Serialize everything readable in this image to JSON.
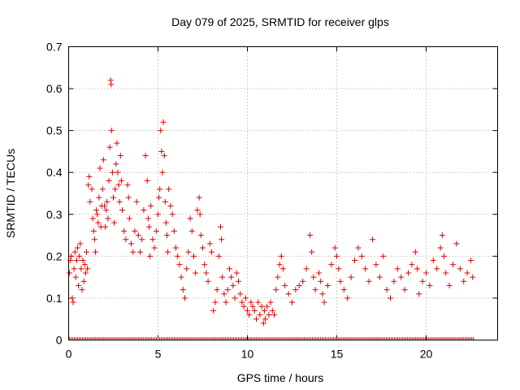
{
  "chart_data": {
    "type": "scatter",
    "title": "Day 079 of 2025, SRMTID for receiver glps",
    "xlabel": "GPS time / hours",
    "ylabel": "SRMTID / TECUs",
    "xlim": [
      0,
      24
    ],
    "ylim": [
      0,
      0.7
    ],
    "x_ticks": [
      "0",
      "5",
      "10",
      "15",
      "20"
    ],
    "y_ticks": [
      "0",
      "0.1",
      "0.2",
      "0.3",
      "0.4",
      "0.5",
      "0.6",
      "0.7"
    ],
    "grid": true,
    "marker": "plus",
    "color": "#e00000",
    "series": [
      {
        "name": "SRMTID",
        "points": [
          [
            0.05,
            0.16
          ],
          [
            0.1,
            0.19
          ],
          [
            0.15,
            0.2
          ],
          [
            0.2,
            0.1
          ],
          [
            0.25,
            0.09
          ],
          [
            0.3,
            0.17
          ],
          [
            0.35,
            0.21
          ],
          [
            0.4,
            0.15
          ],
          [
            0.45,
            0.19
          ],
          [
            0.5,
            0.22
          ],
          [
            0.55,
            0.13
          ],
          [
            0.6,
            0.2
          ],
          [
            0.65,
            0.23
          ],
          [
            0.7,
            0.17
          ],
          [
            0.75,
            0.12
          ],
          [
            0.8,
            0.19
          ],
          [
            0.85,
            0.14
          ],
          [
            0.9,
            0.18
          ],
          [
            0.95,
            0.16
          ],
          [
            1.0,
            0.21
          ],
          [
            1.05,
            0.17
          ],
          [
            1.1,
            0.37
          ],
          [
            1.15,
            0.39
          ],
          [
            1.2,
            0.33
          ],
          [
            1.3,
            0.36
          ],
          [
            1.35,
            0.29
          ],
          [
            1.4,
            0.26
          ],
          [
            1.45,
            0.24
          ],
          [
            1.5,
            0.21
          ],
          [
            1.55,
            0.31
          ],
          [
            1.6,
            0.3
          ],
          [
            1.65,
            0.28
          ],
          [
            1.7,
            0.34
          ],
          [
            1.75,
            0.41
          ],
          [
            1.8,
            0.27
          ],
          [
            1.85,
            0.32
          ],
          [
            1.9,
            0.36
          ],
          [
            1.95,
            0.43
          ],
          [
            2.0,
            0.32
          ],
          [
            2.05,
            0.27
          ],
          [
            2.1,
            0.31
          ],
          [
            2.15,
            0.33
          ],
          [
            2.2,
            0.29
          ],
          [
            2.25,
            0.38
          ],
          [
            2.3,
            0.46
          ],
          [
            2.35,
            0.62
          ],
          [
            2.38,
            0.61
          ],
          [
            2.4,
            0.5
          ],
          [
            2.45,
            0.4
          ],
          [
            2.5,
            0.34
          ],
          [
            2.55,
            0.28
          ],
          [
            2.6,
            0.36
          ],
          [
            2.65,
            0.42
          ],
          [
            2.7,
            0.47
          ],
          [
            2.75,
            0.4
          ],
          [
            2.8,
            0.37
          ],
          [
            2.85,
            0.33
          ],
          [
            2.9,
            0.44
          ],
          [
            2.95,
            0.38
          ],
          [
            3.0,
            0.31
          ],
          [
            3.1,
            0.26
          ],
          [
            3.2,
            0.24
          ],
          [
            3.3,
            0.37
          ],
          [
            3.35,
            0.34
          ],
          [
            3.4,
            0.29
          ],
          [
            3.5,
            0.23
          ],
          [
            3.6,
            0.21
          ],
          [
            3.7,
            0.26
          ],
          [
            3.8,
            0.33
          ],
          [
            3.9,
            0.25
          ],
          [
            4.0,
            0.21
          ],
          [
            4.1,
            0.24
          ],
          [
            4.2,
            0.31
          ],
          [
            4.3,
            0.44
          ],
          [
            4.4,
            0.38
          ],
          [
            4.45,
            0.29
          ],
          [
            4.5,
            0.27
          ],
          [
            4.55,
            0.2
          ],
          [
            4.6,
            0.32
          ],
          [
            4.7,
            0.24
          ],
          [
            4.8,
            0.22
          ],
          [
            4.9,
            0.26
          ],
          [
            5.0,
            0.3
          ],
          [
            5.05,
            0.34
          ],
          [
            5.1,
            0.36
          ],
          [
            5.15,
            0.5
          ],
          [
            5.2,
            0.45
          ],
          [
            5.25,
            0.4
          ],
          [
            5.3,
            0.52
          ],
          [
            5.35,
            0.44
          ],
          [
            5.4,
            0.33
          ],
          [
            5.45,
            0.28
          ],
          [
            5.5,
            0.25
          ],
          [
            5.55,
            0.21
          ],
          [
            5.6,
            0.36
          ],
          [
            5.7,
            0.32
          ],
          [
            5.8,
            0.3
          ],
          [
            5.9,
            0.26
          ],
          [
            6.0,
            0.22
          ],
          [
            6.1,
            0.2
          ],
          [
            6.2,
            0.18
          ],
          [
            6.3,
            0.15
          ],
          [
            6.4,
            0.12
          ],
          [
            6.5,
            0.1
          ],
          [
            6.6,
            0.17
          ],
          [
            6.7,
            0.21
          ],
          [
            6.8,
            0.29
          ],
          [
            6.9,
            0.26
          ],
          [
            7.0,
            0.2
          ],
          [
            7.1,
            0.16
          ],
          [
            7.2,
            0.31
          ],
          [
            7.3,
            0.34
          ],
          [
            7.35,
            0.3
          ],
          [
            7.4,
            0.25
          ],
          [
            7.5,
            0.22
          ],
          [
            7.6,
            0.18
          ],
          [
            7.7,
            0.16
          ],
          [
            7.8,
            0.14
          ],
          [
            7.9,
            0.23
          ],
          [
            8.0,
            0.21
          ],
          [
            8.1,
            0.07
          ],
          [
            8.2,
            0.09
          ],
          [
            8.3,
            0.12
          ],
          [
            8.4,
            0.2
          ],
          [
            8.5,
            0.27
          ],
          [
            8.55,
            0.24
          ],
          [
            8.6,
            0.15
          ],
          [
            8.7,
            0.11
          ],
          [
            8.8,
            0.09
          ],
          [
            8.9,
            0.12
          ],
          [
            9.0,
            0.17
          ],
          [
            9.1,
            0.15
          ],
          [
            9.2,
            0.13
          ],
          [
            9.3,
            0.1
          ],
          [
            9.4,
            0.16
          ],
          [
            9.5,
            0.14
          ],
          [
            9.6,
            0.11
          ],
          [
            9.7,
            0.09
          ],
          [
            9.8,
            0.08
          ],
          [
            9.9,
            0.1
          ],
          [
            10.0,
            0.07
          ],
          [
            10.1,
            0.06
          ],
          [
            10.2,
            0.09
          ],
          [
            10.3,
            0.08
          ],
          [
            10.4,
            0.07
          ],
          [
            10.5,
            0.05
          ],
          [
            10.6,
            0.09
          ],
          [
            10.7,
            0.06
          ],
          [
            10.8,
            0.08
          ],
          [
            10.9,
            0.04
          ],
          [
            10.95,
            0.07
          ],
          [
            11.0,
            0.05
          ],
          [
            11.1,
            0.08
          ],
          [
            11.2,
            0.06
          ],
          [
            11.3,
            0.09
          ],
          [
            11.4,
            0.07
          ],
          [
            11.5,
            0.06
          ],
          [
            11.6,
            0.12
          ],
          [
            11.7,
            0.15
          ],
          [
            11.8,
            0.18
          ],
          [
            11.9,
            0.2
          ],
          [
            12.0,
            0.17
          ],
          [
            12.1,
            0.13
          ],
          [
            12.3,
            0.11
          ],
          [
            12.5,
            0.09
          ],
          [
            12.7,
            0.12
          ],
          [
            12.9,
            0.13
          ],
          [
            13.1,
            0.14
          ],
          [
            13.3,
            0.17
          ],
          [
            13.5,
            0.25
          ],
          [
            13.6,
            0.21
          ],
          [
            13.7,
            0.15
          ],
          [
            13.8,
            0.12
          ],
          [
            14.0,
            0.16
          ],
          [
            14.1,
            0.14
          ],
          [
            14.2,
            0.11
          ],
          [
            14.3,
            0.09
          ],
          [
            14.5,
            0.13
          ],
          [
            14.7,
            0.18
          ],
          [
            14.9,
            0.22
          ],
          [
            15.0,
            0.2
          ],
          [
            15.1,
            0.17
          ],
          [
            15.2,
            0.14
          ],
          [
            15.4,
            0.12
          ],
          [
            15.6,
            0.1
          ],
          [
            15.8,
            0.15
          ],
          [
            16.0,
            0.19
          ],
          [
            16.2,
            0.22
          ],
          [
            16.4,
            0.2
          ],
          [
            16.6,
            0.17
          ],
          [
            16.8,
            0.14
          ],
          [
            17.0,
            0.24
          ],
          [
            17.2,
            0.18
          ],
          [
            17.4,
            0.15
          ],
          [
            17.6,
            0.2
          ],
          [
            17.8,
            0.12
          ],
          [
            18.0,
            0.1
          ],
          [
            18.2,
            0.14
          ],
          [
            18.4,
            0.17
          ],
          [
            18.6,
            0.15
          ],
          [
            18.8,
            0.12
          ],
          [
            19.0,
            0.16
          ],
          [
            19.2,
            0.18
          ],
          [
            19.4,
            0.21
          ],
          [
            19.5,
            0.17
          ],
          [
            19.6,
            0.11
          ],
          [
            19.8,
            0.14
          ],
          [
            20.0,
            0.16
          ],
          [
            20.2,
            0.13
          ],
          [
            20.4,
            0.19
          ],
          [
            20.6,
            0.17
          ],
          [
            20.8,
            0.22
          ],
          [
            20.9,
            0.25
          ],
          [
            21.0,
            0.2
          ],
          [
            21.1,
            0.16
          ],
          [
            21.3,
            0.13
          ],
          [
            21.5,
            0.18
          ],
          [
            21.7,
            0.23
          ],
          [
            21.9,
            0.17
          ],
          [
            22.1,
            0.14
          ],
          [
            22.3,
            0.16
          ],
          [
            22.5,
            0.19
          ],
          [
            22.6,
            0.15
          ]
        ]
      }
    ]
  }
}
